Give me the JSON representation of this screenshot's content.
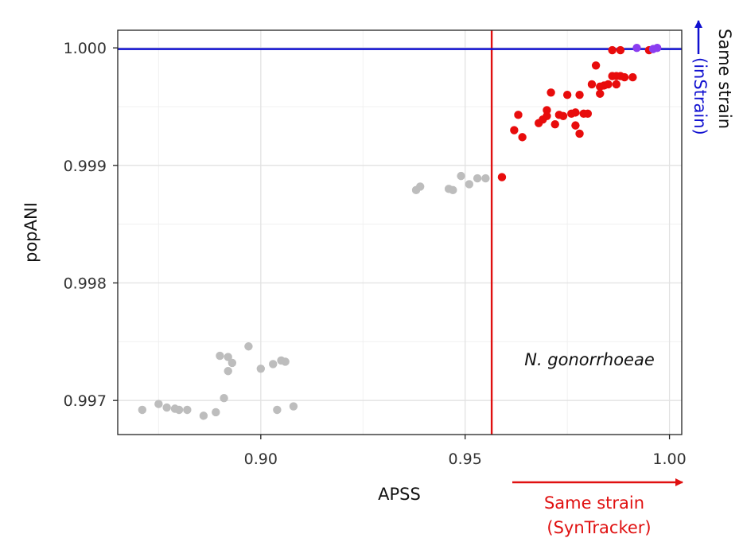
{
  "chart_data": {
    "type": "scatter",
    "title": "",
    "xlabel": "APSS",
    "ylabel": "popANI",
    "xlim": [
      0.865,
      1.003
    ],
    "ylim": [
      0.99671,
      1.00015
    ],
    "xticks": [
      0.9,
      0.95,
      1.0
    ],
    "xtick_labels": [
      "0.90",
      "0.95",
      "1.00"
    ],
    "yticks": [
      0.997,
      0.998,
      0.999,
      1.0
    ],
    "ytick_labels": [
      "0.997",
      "0.998",
      "0.999",
      "1.000"
    ],
    "grid": true,
    "thresholds": {
      "apss": 0.9565,
      "popani": 0.99999,
      "apss_color": "#e01010",
      "popani_color": "#1010d0"
    },
    "annotations": {
      "species": "N. gonorrhoeae",
      "x_threshold_line1": "Same strain",
      "x_threshold_line2": "(SynTracker)",
      "y_threshold_line1": "Same strain",
      "y_threshold_line2": "(inStrain)"
    },
    "point_colors": {
      "gray": "#bdbdbd",
      "red": "#e80c0c",
      "purple": "#8a3df0"
    },
    "points": [
      {
        "x": 0.871,
        "y": 0.99692,
        "c": "gray"
      },
      {
        "x": 0.875,
        "y": 0.99697,
        "c": "gray"
      },
      {
        "x": 0.877,
        "y": 0.99694,
        "c": "gray"
      },
      {
        "x": 0.879,
        "y": 0.99693,
        "c": "gray"
      },
      {
        "x": 0.88,
        "y": 0.99692,
        "c": "gray"
      },
      {
        "x": 0.882,
        "y": 0.99692,
        "c": "gray"
      },
      {
        "x": 0.886,
        "y": 0.99687,
        "c": "gray"
      },
      {
        "x": 0.889,
        "y": 0.9969,
        "c": "gray"
      },
      {
        "x": 0.89,
        "y": 0.99738,
        "c": "gray"
      },
      {
        "x": 0.891,
        "y": 0.99702,
        "c": "gray"
      },
      {
        "x": 0.892,
        "y": 0.99737,
        "c": "gray"
      },
      {
        "x": 0.892,
        "y": 0.99725,
        "c": "gray"
      },
      {
        "x": 0.893,
        "y": 0.99732,
        "c": "gray"
      },
      {
        "x": 0.897,
        "y": 0.99746,
        "c": "gray"
      },
      {
        "x": 0.9,
        "y": 0.99727,
        "c": "gray"
      },
      {
        "x": 0.903,
        "y": 0.99731,
        "c": "gray"
      },
      {
        "x": 0.904,
        "y": 0.99692,
        "c": "gray"
      },
      {
        "x": 0.905,
        "y": 0.99734,
        "c": "gray"
      },
      {
        "x": 0.906,
        "y": 0.99733,
        "c": "gray"
      },
      {
        "x": 0.908,
        "y": 0.99695,
        "c": "gray"
      },
      {
        "x": 0.938,
        "y": 0.99879,
        "c": "gray"
      },
      {
        "x": 0.939,
        "y": 0.99882,
        "c": "gray"
      },
      {
        "x": 0.946,
        "y": 0.9988,
        "c": "gray"
      },
      {
        "x": 0.947,
        "y": 0.99879,
        "c": "gray"
      },
      {
        "x": 0.949,
        "y": 0.99891,
        "c": "gray"
      },
      {
        "x": 0.951,
        "y": 0.99884,
        "c": "gray"
      },
      {
        "x": 0.953,
        "y": 0.99889,
        "c": "gray"
      },
      {
        "x": 0.955,
        "y": 0.99889,
        "c": "gray"
      },
      {
        "x": 0.959,
        "y": 0.9989,
        "c": "red"
      },
      {
        "x": 0.962,
        "y": 0.9993,
        "c": "red"
      },
      {
        "x": 0.963,
        "y": 0.99943,
        "c": "red"
      },
      {
        "x": 0.964,
        "y": 0.99924,
        "c": "red"
      },
      {
        "x": 0.968,
        "y": 0.99936,
        "c": "red"
      },
      {
        "x": 0.969,
        "y": 0.99939,
        "c": "red"
      },
      {
        "x": 0.97,
        "y": 0.99942,
        "c": "red"
      },
      {
        "x": 0.97,
        "y": 0.99947,
        "c": "red"
      },
      {
        "x": 0.971,
        "y": 0.99962,
        "c": "red"
      },
      {
        "x": 0.972,
        "y": 0.99935,
        "c": "red"
      },
      {
        "x": 0.973,
        "y": 0.99943,
        "c": "red"
      },
      {
        "x": 0.974,
        "y": 0.99942,
        "c": "red"
      },
      {
        "x": 0.975,
        "y": 0.9996,
        "c": "red"
      },
      {
        "x": 0.976,
        "y": 0.99944,
        "c": "red"
      },
      {
        "x": 0.977,
        "y": 0.99945,
        "c": "red"
      },
      {
        "x": 0.977,
        "y": 0.99934,
        "c": "red"
      },
      {
        "x": 0.978,
        "y": 0.9996,
        "c": "red"
      },
      {
        "x": 0.978,
        "y": 0.99927,
        "c": "red"
      },
      {
        "x": 0.979,
        "y": 0.99944,
        "c": "red"
      },
      {
        "x": 0.98,
        "y": 0.99944,
        "c": "red"
      },
      {
        "x": 0.981,
        "y": 0.99969,
        "c": "red"
      },
      {
        "x": 0.982,
        "y": 0.99985,
        "c": "red"
      },
      {
        "x": 0.983,
        "y": 0.99967,
        "c": "red"
      },
      {
        "x": 0.983,
        "y": 0.99961,
        "c": "red"
      },
      {
        "x": 0.984,
        "y": 0.99968,
        "c": "red"
      },
      {
        "x": 0.985,
        "y": 0.99969,
        "c": "red"
      },
      {
        "x": 0.986,
        "y": 0.99976,
        "c": "red"
      },
      {
        "x": 0.986,
        "y": 0.99998,
        "c": "red"
      },
      {
        "x": 0.987,
        "y": 0.99976,
        "c": "red"
      },
      {
        "x": 0.987,
        "y": 0.99969,
        "c": "red"
      },
      {
        "x": 0.988,
        "y": 0.99998,
        "c": "red"
      },
      {
        "x": 0.988,
        "y": 0.99976,
        "c": "red"
      },
      {
        "x": 0.989,
        "y": 0.99975,
        "c": "red"
      },
      {
        "x": 0.991,
        "y": 0.99975,
        "c": "red"
      },
      {
        "x": 0.992,
        "y": 1.0,
        "c": "purple"
      },
      {
        "x": 0.995,
        "y": 0.99998,
        "c": "red"
      },
      {
        "x": 0.996,
        "y": 0.99999,
        "c": "purple"
      },
      {
        "x": 0.997,
        "y": 1.0,
        "c": "purple"
      }
    ]
  }
}
